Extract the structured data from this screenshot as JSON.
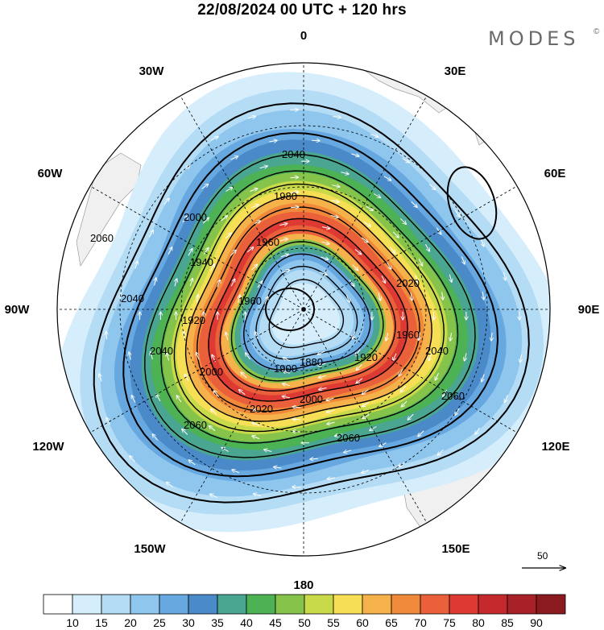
{
  "title": "22/08/2024  00 UTC  + 120 hrs",
  "brand": {
    "name": "MODES",
    "mark": "©"
  },
  "map": {
    "projection": "south-polar-stereographic",
    "longitude_labels": [
      "0",
      "30E",
      "60E",
      "90E",
      "120E",
      "150E",
      "180",
      "150W",
      "120W",
      "90W",
      "60W",
      "30W"
    ],
    "longitudes_deg": [
      0,
      30,
      60,
      90,
      120,
      150,
      180,
      -150,
      -120,
      -90,
      -60,
      -30
    ],
    "geopotential_contours": [
      {
        "label": "2060",
        "value": 2060
      },
      {
        "label": "2040",
        "value": 2040
      },
      {
        "label": "2020",
        "value": 2020
      },
      {
        "label": "2000",
        "value": 2000
      },
      {
        "label": "1980",
        "value": 1980
      },
      {
        "label": "1960",
        "value": 1960
      },
      {
        "label": "1940",
        "value": 1940
      },
      {
        "label": "1920",
        "value": 1920
      },
      {
        "label": "1900",
        "value": 1900
      },
      {
        "label": "1880",
        "value": 1880
      }
    ],
    "extra_contour_labels": [
      "2060",
      "2060",
      "2040",
      "2040",
      "1960",
      "1980",
      "2000",
      "2020"
    ],
    "wind_reference": {
      "label": "50",
      "value": 50
    }
  },
  "colorbar": {
    "labels": [
      "10",
      "15",
      "20",
      "25",
      "30",
      "35",
      "40",
      "45",
      "50",
      "55",
      "60",
      "65",
      "70",
      "75",
      "80",
      "85",
      "90"
    ],
    "colors": [
      "#ffffff",
      "#d6eefc",
      "#b4dcf5",
      "#8ec6ee",
      "#66a8df",
      "#4b8ac9",
      "#4aa591",
      "#4cb253",
      "#86c34a",
      "#c8d94a",
      "#f6de55",
      "#f6b24a",
      "#f08a3a",
      "#e9603a",
      "#dc3a33",
      "#c42a2d",
      "#a82128",
      "#8a1a1f"
    ]
  }
}
